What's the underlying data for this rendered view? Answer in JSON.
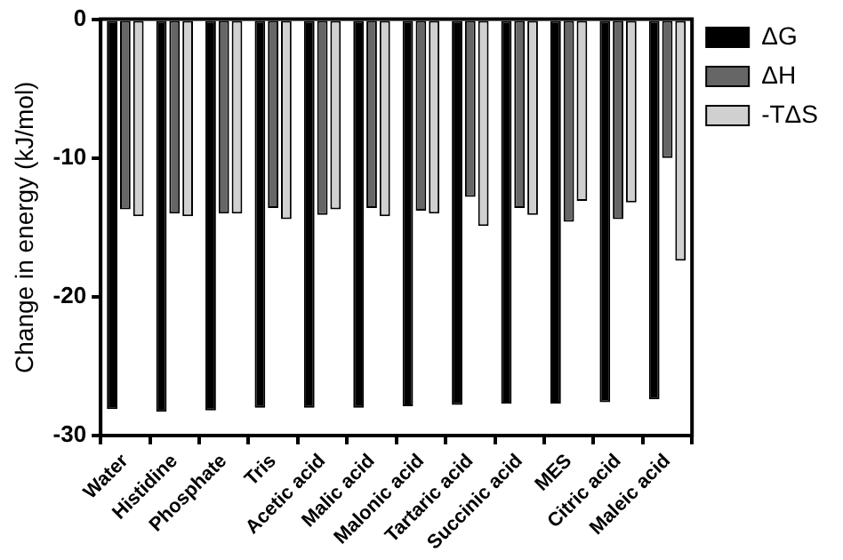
{
  "chart_data": {
    "type": "bar",
    "ylabel": "Change in energy (kJ/mol)",
    "categories": [
      "Water",
      "Histidine",
      "Phosphate",
      "Tris",
      "Acetic acid",
      "Malic acid",
      "Malonic acid",
      "Tartaric acid",
      "Succinic acid",
      "MES",
      "Citric acid",
      "Maleic acid"
    ],
    "series": [
      {
        "name": "ΔG",
        "color": "#000000",
        "values": [
          -28.1,
          -28.3,
          -28.2,
          -28.0,
          -28.0,
          -28.0,
          -27.9,
          -27.8,
          -27.7,
          -27.7,
          -27.6,
          -27.4
        ]
      },
      {
        "name": "ΔH",
        "color": "#666666",
        "values": [
          -13.7,
          -14.0,
          -14.0,
          -13.6,
          -14.1,
          -13.6,
          -13.8,
          -12.8,
          -13.6,
          -14.6,
          -14.4,
          -10.0
        ]
      },
      {
        "name": "-TΔS",
        "color": "#d0d0d0",
        "values": [
          -14.2,
          -14.2,
          -14.0,
          -14.4,
          -13.7,
          -14.2,
          -14.0,
          -14.9,
          -14.1,
          -13.1,
          -13.2,
          -17.4
        ]
      }
    ],
    "ylim": [
      -30,
      0
    ],
    "yticks": [
      0,
      -10,
      -20,
      -30
    ],
    "grid": false,
    "legend": "right"
  }
}
